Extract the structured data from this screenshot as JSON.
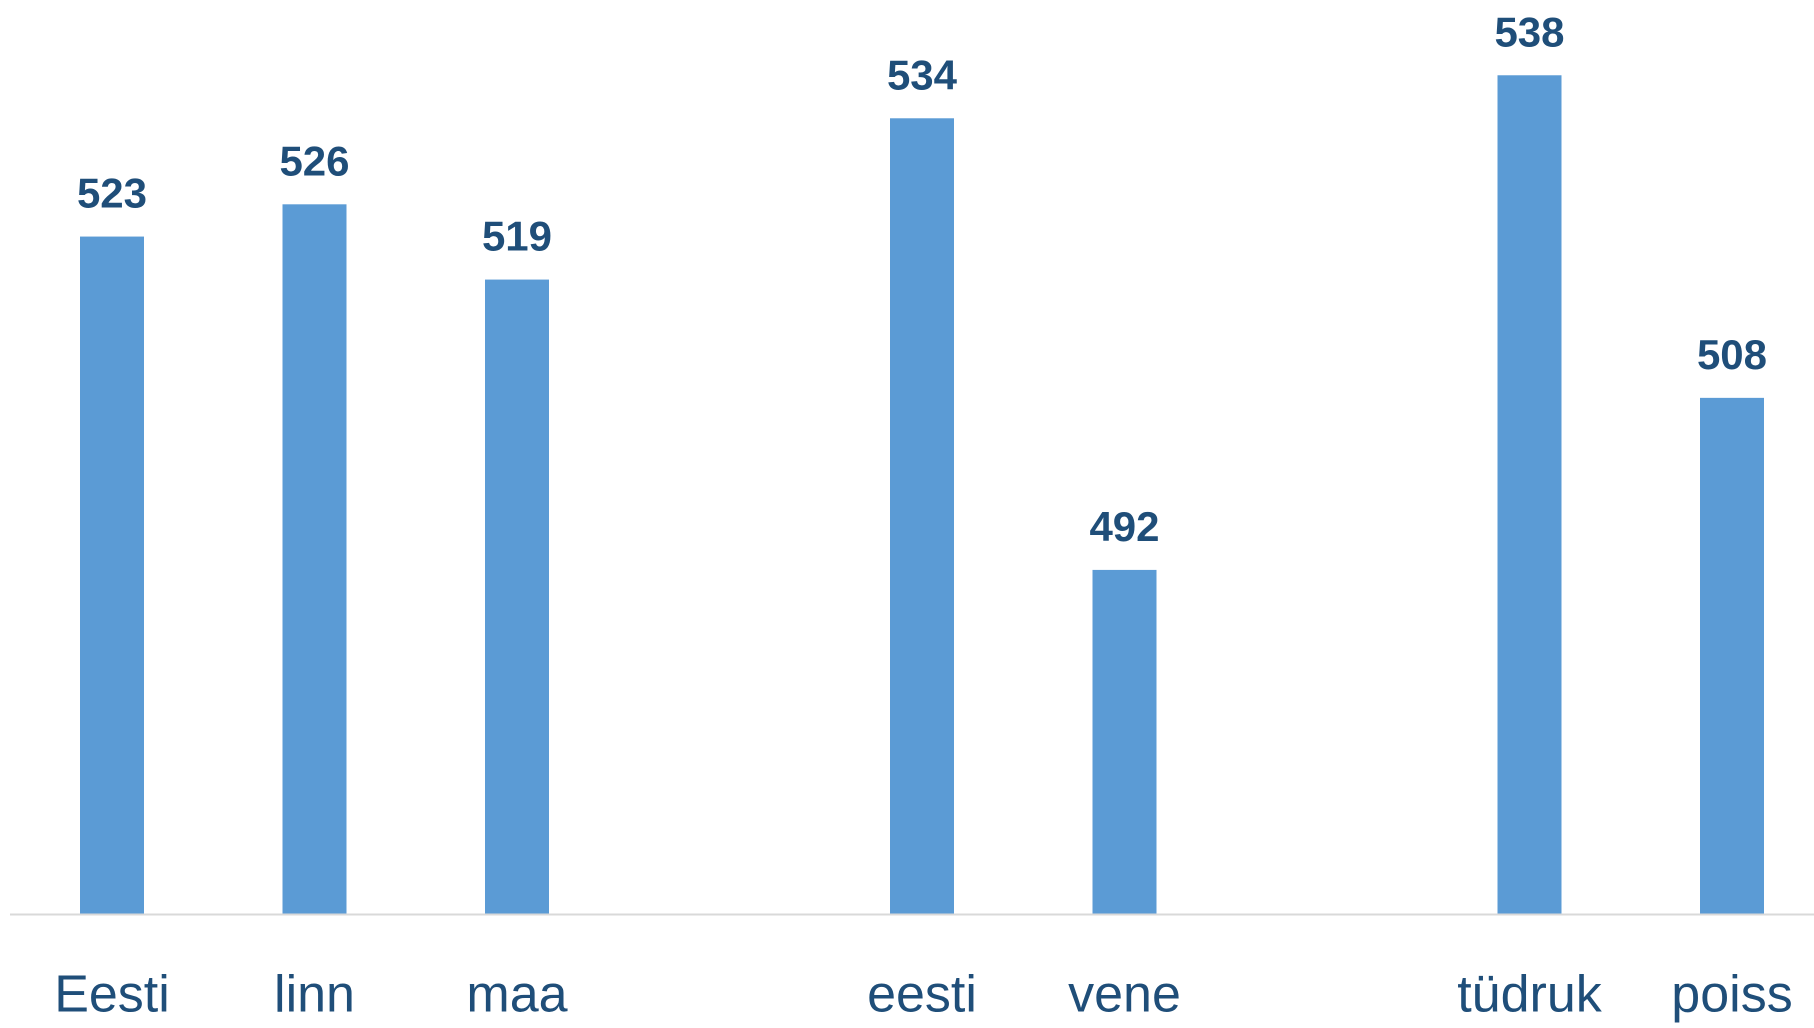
{
  "chart_data": {
    "type": "bar",
    "categories": [
      "Eesti",
      "linn",
      "maa",
      null,
      "eesti",
      "vene",
      null,
      "tüdruk",
      "poiss"
    ],
    "values": [
      523,
      526,
      519,
      null,
      534,
      492,
      null,
      538,
      508
    ],
    "color": "#5b9bd5",
    "ylim": [
      460,
      545
    ]
  }
}
